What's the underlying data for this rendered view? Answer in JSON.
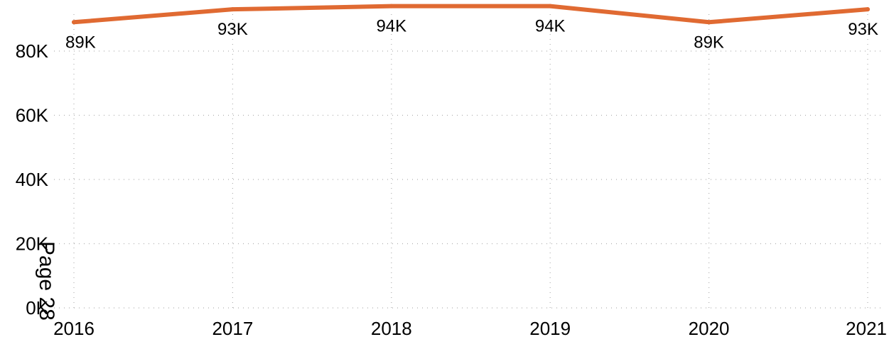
{
  "chart_data": {
    "type": "line",
    "x": [
      "2016",
      "2017",
      "2018",
      "2019",
      "2020",
      "2021"
    ],
    "series": [
      {
        "values": [
          89000,
          93000,
          94000,
          94000,
          89000,
          93000
        ],
        "labels": [
          "89K",
          "93K",
          "94K",
          "94K",
          "89K",
          "93K"
        ],
        "color": "#E06A32"
      }
    ],
    "yticks": [
      0,
      20000,
      40000,
      60000,
      80000
    ],
    "ytick_labels": [
      "0K",
      "20K",
      "40K",
      "60K",
      "80K"
    ],
    "ylim": [
      0,
      94000
    ],
    "grid": true
  },
  "page_label": "Page 28"
}
